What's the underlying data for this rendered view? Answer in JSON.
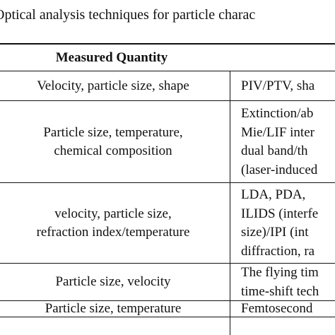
{
  "title": "Optical analysis techniques for particle charac",
  "table": {
    "header": [
      "Measured Quantity"
    ],
    "rows": [
      {
        "quantity": [
          "Velocity, particle size, shape"
        ],
        "technique": [
          "PIV/PTV, sha"
        ]
      },
      {
        "quantity": [
          "Particle size, temperature,",
          "chemical composition"
        ],
        "technique": [
          "Extinction/ab",
          "Mie/LIF inter",
          "dual band/th",
          "(laser-induced"
        ]
      },
      {
        "quantity": [
          "velocity, particle size,",
          "refraction index/temperature"
        ],
        "technique": [
          "LDA, PDA,",
          "ILIDS (interfe",
          "size)/IPI (int",
          "diffraction, ra"
        ]
      },
      {
        "quantity": [
          "Particle size, velocity"
        ],
        "technique": [
          "The flying tim",
          "time-shift tech"
        ]
      },
      {
        "quantity": [
          "Particle size, temperature"
        ],
        "technique": [
          "Femtosecond"
        ]
      }
    ]
  }
}
